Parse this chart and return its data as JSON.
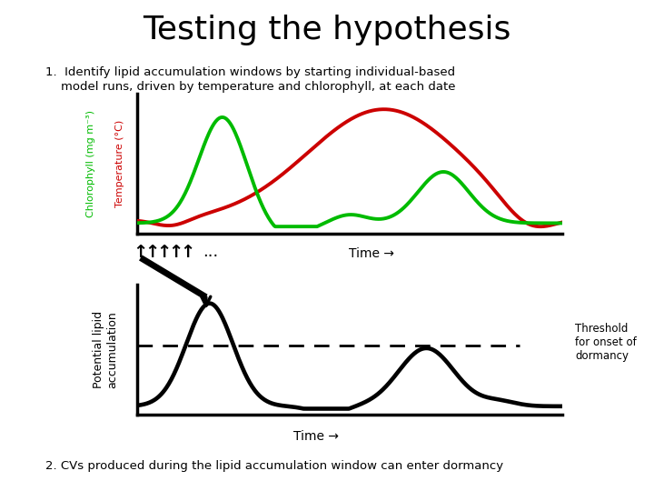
{
  "title": "Testing the hypothesis",
  "title_fontsize": 26,
  "bg_color": "#ffffff",
  "text1_line1": "1.  Identify lipid accumulation windows by starting individual-based",
  "text1_line2": "    model runs, driven by temperature and chlorophyll, at each date",
  "text2": "2. CVs produced during the lipid accumulation window can enter dormancy",
  "top_ylabel_green": "Chlorophyll (mg m⁻³)",
  "top_ylabel_red": "Temperature (°C)",
  "top_xlabel": "Time →",
  "bottom_ylabel": "Potential lipid\naccumulation",
  "bottom_xlabel": "Time →",
  "threshold_label": "Threshold\nfor onset of\ndormancy",
  "green_color": "#00bb00",
  "red_color": "#cc0000",
  "black_color": "#000000",
  "axis_lw": 2.5,
  "line_lw": 2.8
}
